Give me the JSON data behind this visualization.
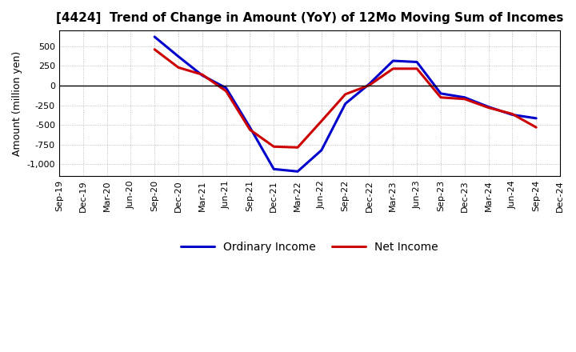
{
  "title": "[4424]  Trend of Change in Amount (YoY) of 12Mo Moving Sum of Incomes",
  "ylabel": "Amount (million yen)",
  "background_color": "#ffffff",
  "grid_color": "#999999",
  "x_labels": [
    "Sep-19",
    "Dec-19",
    "Mar-20",
    "Jun-20",
    "Sep-20",
    "Dec-20",
    "Mar-21",
    "Jun-21",
    "Sep-21",
    "Dec-21",
    "Mar-22",
    "Jun-22",
    "Sep-22",
    "Dec-22",
    "Mar-23",
    "Jun-23",
    "Sep-23",
    "Dec-23",
    "Mar-24",
    "Jun-24",
    "Sep-24",
    "Dec-24"
  ],
  "ordinary_income": [
    null,
    null,
    null,
    null,
    620,
    370,
    130,
    -30,
    -530,
    -1060,
    -1090,
    -820,
    -230,
    20,
    315,
    300,
    -100,
    -150,
    -270,
    -370,
    -415,
    null
  ],
  "net_income": [
    null,
    null,
    null,
    null,
    460,
    230,
    140,
    -70,
    -560,
    -775,
    -785,
    -450,
    -110,
    5,
    215,
    215,
    -150,
    -170,
    -280,
    -360,
    -530,
    null
  ],
  "ordinary_color": "#0000cc",
  "net_color": "#cc0000",
  "ylim": [
    -1150,
    700
  ],
  "yticks": [
    -1000,
    -750,
    -500,
    -250,
    0,
    250,
    500
  ],
  "linewidth": 2.2,
  "legend_fontsize": 10,
  "title_fontsize": 11,
  "ylabel_fontsize": 9,
  "tick_fontsize": 8
}
